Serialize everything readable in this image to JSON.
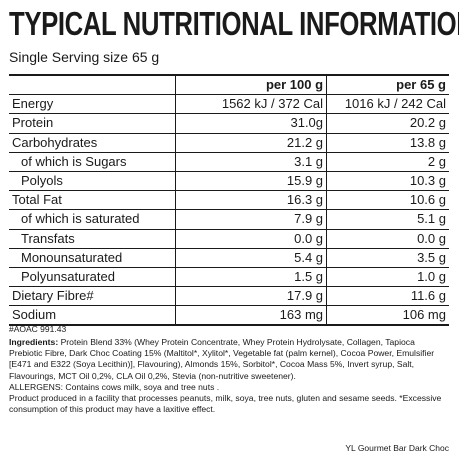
{
  "header": {
    "title": "TYPICAL NUTRITIONAL INFORMATION",
    "serving": "Single Serving size 65 g"
  },
  "table": {
    "columns": [
      "",
      "per 100 g",
      "per 65 g"
    ],
    "rows": [
      {
        "label": "Energy",
        "per100": "1562 kJ / 372 Cal",
        "per65": "1016 kJ / 242 Cal"
      },
      {
        "label": "Protein",
        "per100": "31.0g",
        "per65": "20.2 g"
      },
      {
        "label": "Carbohydrates",
        "per100": "21.2 g",
        "per65": "13.8 g"
      },
      {
        "label": "of which is Sugars",
        "per100": "3.1 g",
        "per65": "2 g"
      },
      {
        "label": "Polyols",
        "per100": "15.9 g",
        "per65": "10.3 g"
      },
      {
        "label": "Total Fat",
        "per100": "16.3 g",
        "per65": "10.6 g"
      },
      {
        "label": "of which is saturated",
        "per100": "7.9 g",
        "per65": "5.1 g"
      },
      {
        "label": "Transfats",
        "per100": "0.0 g",
        "per65": "0.0 g"
      },
      {
        "label": "Monounsaturated",
        "per100": "5.4 g",
        "per65": "3.5 g"
      },
      {
        "label": "Polyunsaturated",
        "per100": "1.5 g",
        "per65": "1.0 g"
      },
      {
        "label": "Dietary Fibre#",
        "per100": "17.9 g",
        "per65": "11.6 g"
      },
      {
        "label": "Sodium",
        "per100": "163 mg",
        "per65": "106 mg"
      }
    ]
  },
  "footnote": "#AOAC 991.43",
  "ingredients": {
    "heading": "Ingredients:",
    "text": " Protein Blend 33% (Whey Protein Concentrate, Whey Protein Hydrolysate, Collagen, Tapioca Prebiotic Fibre, Dark Choc Coating 15% (Maltitol*, Xylitol*, Vegetable fat (palm kernel), Cocoa Power, Emulsifier [E471 and E322 (Soya Lecithin)], Flavouring), Almonds 15%, Sorbitol*, Cocoa Mass 5%, Invert syrup, Salt, Flavourings, MCT Oil 0,2%, CLA Oil 0,2%, Stevia (non-nutritive sweetener).",
    "allergens": "ALLERGENS: Contains cows milk, soya and tree nuts .",
    "facility": "Product produced in a facility that processes peanuts, milk, soya, tree nuts, gluten and sesame seeds. *Excessive consumption of this product may have a laxitive effect."
  },
  "product_name": "YL Gourmet Bar Dark Choc"
}
